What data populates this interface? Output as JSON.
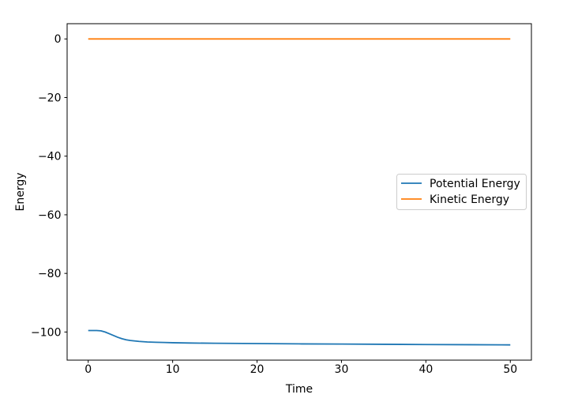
{
  "figure": {
    "background_color": "#ffffff"
  },
  "chart_data": {
    "type": "line",
    "xlabel": "Time",
    "ylabel": "Energy",
    "xlim": [
      -2.5,
      52.5
    ],
    "ylim": [
      -109.6,
      5.2
    ],
    "grid": false,
    "x_ticks": {
      "values": [
        0,
        10,
        20,
        30,
        40,
        50
      ],
      "labels": [
        "0",
        "10",
        "20",
        "30",
        "40",
        "50"
      ]
    },
    "y_ticks": {
      "values": [
        0,
        -20,
        -40,
        -60,
        -80,
        -100
      ],
      "labels": [
        "0",
        "−20",
        "−40",
        "−60",
        "−80",
        "−100"
      ]
    },
    "legend": {
      "position": "center right",
      "border_color": "#cccccc"
    },
    "series": [
      {
        "name": "Potential Energy",
        "color": "#1f77b4",
        "x": [
          0,
          0.5,
          1.0,
          1.5,
          2.0,
          2.5,
          3.0,
          3.5,
          4.0,
          4.5,
          5.0,
          6.0,
          7.0,
          8.0,
          9.0,
          10,
          12,
          15,
          20,
          25,
          30,
          35,
          40,
          45,
          50
        ],
        "y": [
          -99.5,
          -99.5,
          -99.5,
          -99.6,
          -100.0,
          -100.6,
          -101.2,
          -101.8,
          -102.3,
          -102.65,
          -102.9,
          -103.2,
          -103.4,
          -103.5,
          -103.58,
          -103.65,
          -103.75,
          -103.85,
          -103.95,
          -104.05,
          -104.12,
          -104.2,
          -104.27,
          -104.33,
          -104.4
        ]
      },
      {
        "name": "Kinetic Energy",
        "color": "#ff7f0e",
        "x": [
          0,
          50
        ],
        "y": [
          0,
          0
        ]
      }
    ]
  }
}
